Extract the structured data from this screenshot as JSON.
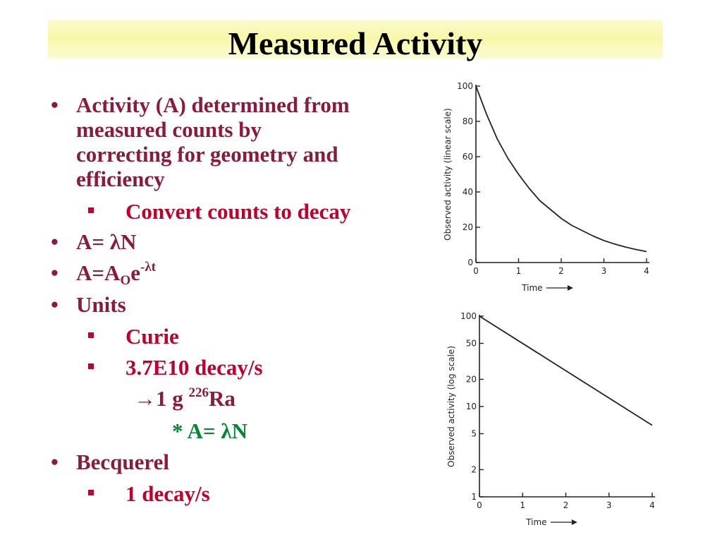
{
  "slide": {
    "title": "Measured Activity",
    "bullets": {
      "b1_line1": "Activity (A) determined from",
      "b1_line2": "measured counts by",
      "b1_line3": "correcting for geometry and",
      "b1_line4": "efficiency",
      "b1_sub1": "Convert counts to decay",
      "b2_prefix": "A= ",
      "b2_lambda": "λ",
      "b2_suffix": "N",
      "b3_A": "A=A",
      "b3_sub": "O",
      "b3_e": "e",
      "b3_sup": "-λt",
      "b4": "Units",
      "b4_sub1": "Curie",
      "b4_sub2": "3.7E10 decay/s",
      "b4_arrow": "→",
      "b4_arrow_text_pre": "1 g ",
      "b4_arrow_sup": "226",
      "b4_arrow_text_post": "Ra",
      "b4_star": "* A= ",
      "b4_star_lambda": "λ",
      "b4_star_suffix": "N",
      "b5": "Becquerel",
      "b5_sub1": "1 decay/s"
    },
    "colors": {
      "maroon": "#8b1a3d",
      "red": "#c0002a",
      "green": "#00872f",
      "title_band": "#f8f8a8"
    }
  },
  "chart_data": [
    {
      "type": "line",
      "title": "",
      "xlabel": "Time",
      "ylabel": "Observed activity (linear scale)",
      "yscale": "linear",
      "xlim": [
        0,
        4
      ],
      "ylim": [
        0,
        100
      ],
      "xticks": [
        "0",
        "1",
        "2",
        "3",
        "4"
      ],
      "yticks": [
        "0",
        "20",
        "40",
        "60",
        "80",
        "100"
      ],
      "x": [
        0,
        0.25,
        0.5,
        0.75,
        1.0,
        1.25,
        1.5,
        1.75,
        2.0,
        2.25,
        2.5,
        2.75,
        3.0,
        3.25,
        3.5,
        3.75,
        4.0
      ],
      "y": [
        100,
        84,
        70,
        59,
        50,
        42,
        35,
        30,
        25,
        21,
        18,
        15,
        12.5,
        10.5,
        8.8,
        7.4,
        6.2
      ],
      "grid": false,
      "legend": "none"
    },
    {
      "type": "line",
      "title": "",
      "xlabel": "Time",
      "ylabel": "Observed activity (log scale)",
      "yscale": "log",
      "xlim": [
        0,
        4
      ],
      "ylim": [
        1,
        100
      ],
      "xticks": [
        "0",
        "1",
        "2",
        "3",
        "4"
      ],
      "yticks": [
        "1",
        "2",
        "5",
        "10",
        "20",
        "50",
        "100"
      ],
      "x": [
        0,
        4
      ],
      "y": [
        100,
        6.2
      ],
      "grid": false,
      "legend": "none"
    }
  ]
}
